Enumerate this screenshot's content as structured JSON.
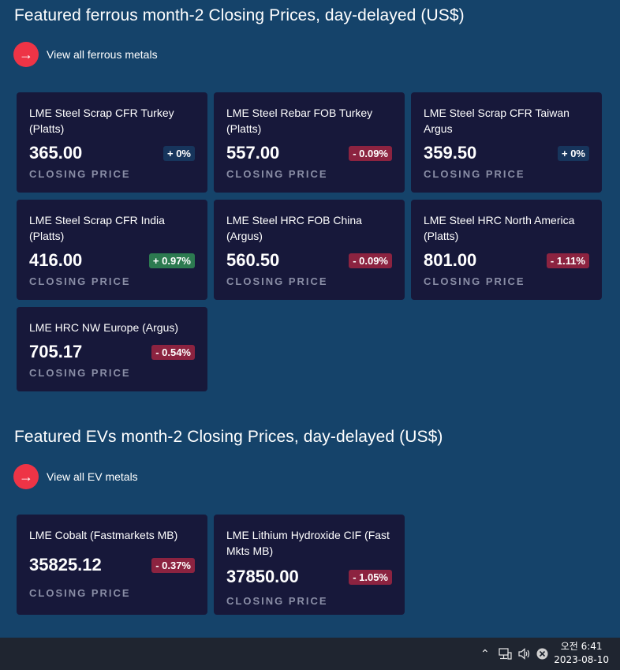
{
  "ferrous": {
    "title": "Featured ferrous month-2 Closing Prices, day-delayed (US$)",
    "view_all_label": "View all ferrous metals",
    "cards": [
      {
        "name_line1": "LME Steel Scrap CFR Turkey",
        "name_line2": "(Platts)",
        "price": "365.00",
        "change": "+ 0%",
        "caption": "CLOSING PRICE"
      },
      {
        "name_line1": "LME Steel Rebar FOB Turkey",
        "name_line2": "(Platts)",
        "price": "557.00",
        "change": "- 0.09%",
        "caption": "CLOSING PRICE"
      },
      {
        "name_line1": "LME Steel Scrap CFR Taiwan",
        "name_line2": "Argus",
        "price": "359.50",
        "change": "+ 0%",
        "caption": "CLOSING PRICE"
      },
      {
        "name_line1": "LME Steel Scrap CFR India",
        "name_line2": "(Platts)",
        "price": "416.00",
        "change": "+ 0.97%",
        "caption": "CLOSING PRICE"
      },
      {
        "name_line1": "LME Steel HRC FOB China",
        "name_line2": "(Argus)",
        "price": "560.50",
        "change": "- 0.09%",
        "caption": "CLOSING PRICE"
      },
      {
        "name_line1": "LME Steel HRC North America",
        "name_line2": "(Platts)",
        "price": "801.00",
        "change": "- 1.11%",
        "caption": "CLOSING PRICE"
      },
      {
        "name_line1": "LME HRC NW Europe (Argus)",
        "name_line2": "",
        "price": "705.17",
        "change": "- 0.54%",
        "caption": "CLOSING PRICE"
      }
    ]
  },
  "ev": {
    "title": "Featured EVs month-2 Closing Prices, day-delayed (US$)",
    "view_all_label": "View all EV metals",
    "cards": [
      {
        "name_line1": "LME Cobalt (Fastmarkets MB)",
        "name_line2": "",
        "price": "35825.12",
        "change": "- 0.37%",
        "caption": "CLOSING PRICE"
      },
      {
        "name_line1": "LME Lithium Hydroxide CIF (Fast",
        "name_line2": "Mkts MB)",
        "price": "37850.00",
        "change": "- 1.05%",
        "caption": "CLOSING PRICE"
      }
    ]
  },
  "taskbar": {
    "time": "오전 6:41",
    "date": "2023-08-10",
    "icons": [
      "chevron-up-icon",
      "network-icon",
      "volume-icon",
      "close-circle-icon"
    ]
  },
  "colors": {
    "background": "#15436a",
    "card": "#17183a",
    "accent": "#ee3446",
    "badge_up": "#2c7a50",
    "badge_down": "#8c2340",
    "badge_neutral": "#17355c"
  }
}
